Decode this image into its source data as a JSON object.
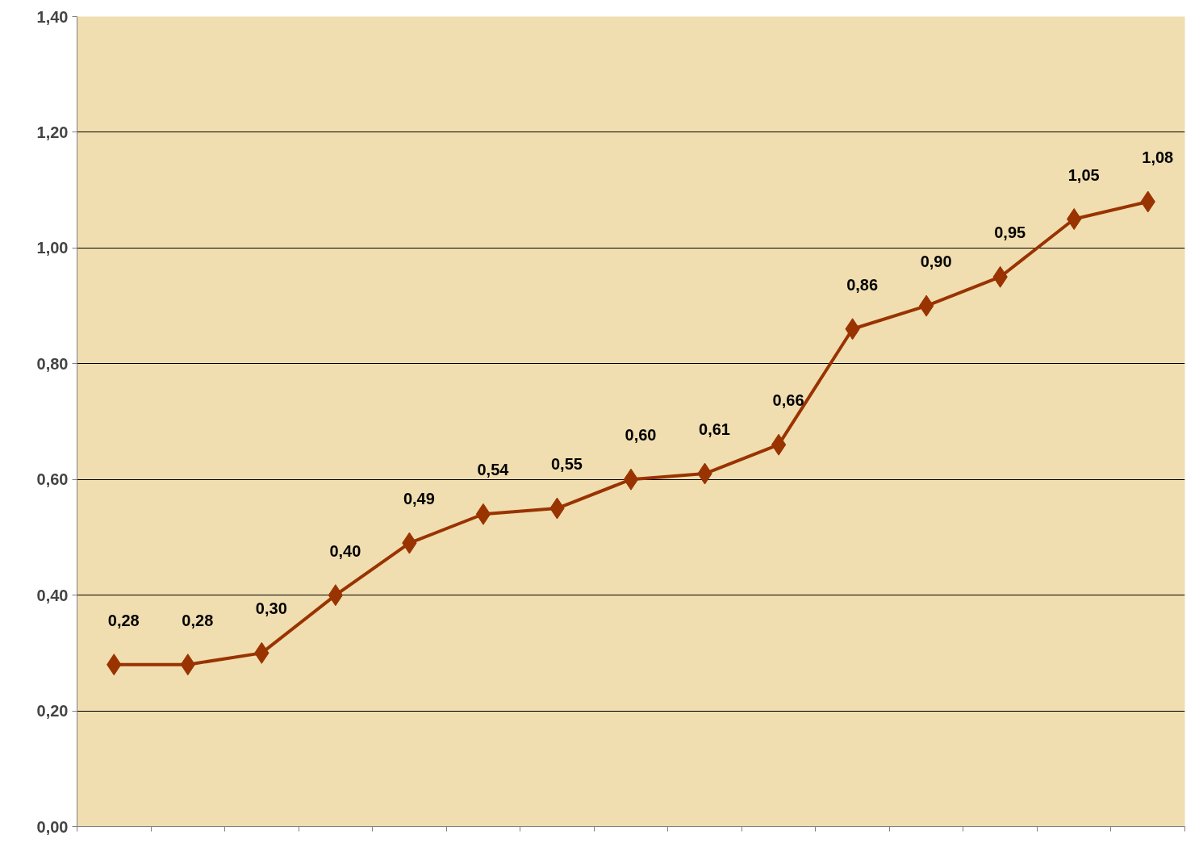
{
  "chart_data": {
    "type": "line",
    "categories": [
      null,
      null,
      null,
      null,
      null,
      null,
      null,
      null,
      null,
      null,
      null,
      null,
      null,
      null,
      null
    ],
    "series": [
      {
        "color": "#993300",
        "values": [
          0.28,
          0.28,
          0.3,
          0.4,
          0.49,
          0.54,
          0.55,
          0.6,
          0.61,
          0.66,
          0.86,
          0.9,
          0.95,
          1.05,
          1.08
        ],
        "value_labels": [
          "0,28",
          "0,28",
          "0,30",
          "0,40",
          "0,49",
          "0,54",
          "0,55",
          "0,60",
          "0,61",
          "0,66",
          "0,86",
          "0,90",
          "0,95",
          "1,05",
          "1,08"
        ]
      }
    ],
    "ylim": [
      0,
      1.4
    ],
    "yticks": [
      {
        "value": 0,
        "label": "0,00"
      },
      {
        "value": 0.2,
        "label": "0,20"
      },
      {
        "value": 0.4,
        "label": "0,40"
      },
      {
        "value": 0.6,
        "label": "0,60"
      },
      {
        "value": 0.8,
        "label": "0,80"
      },
      {
        "value": 1.0,
        "label": "1,00"
      },
      {
        "value": 1.2,
        "label": "1,20"
      },
      {
        "value": 1.4,
        "label": "1,40"
      }
    ],
    "grid": "y",
    "marker": "diamond",
    "line_style": "solid"
  }
}
